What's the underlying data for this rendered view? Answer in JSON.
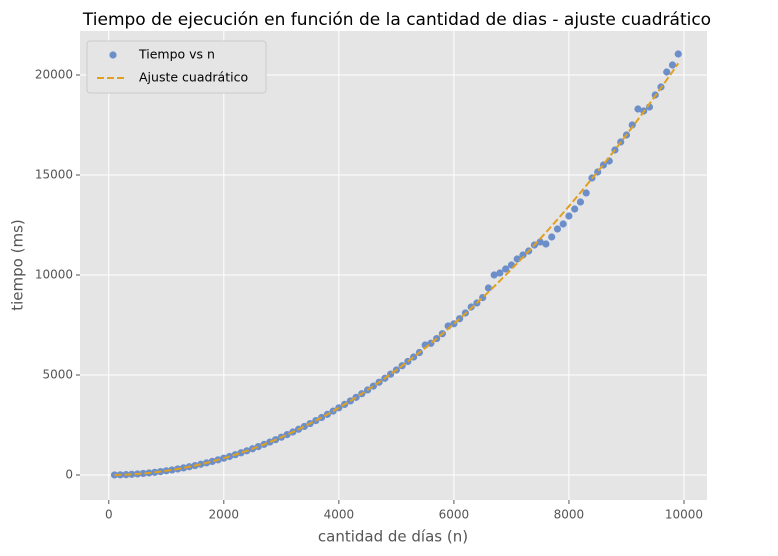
{
  "chart_data": {
    "type": "scatter",
    "title": "Tiempo de ejecución en función de la cantidad de dias - ajuste cuadrático",
    "x_label": "cantidad de días (n)",
    "y_label": "tiempo (ms)",
    "x": [
      100,
      200,
      300,
      400,
      500,
      600,
      700,
      800,
      900,
      1000,
      1100,
      1200,
      1300,
      1400,
      1500,
      1600,
      1700,
      1800,
      1900,
      2000,
      2100,
      2200,
      2300,
      2400,
      2500,
      2600,
      2700,
      2800,
      2900,
      3000,
      3100,
      3200,
      3300,
      3400,
      3500,
      3600,
      3700,
      3800,
      3900,
      4000,
      4100,
      4200,
      4300,
      4400,
      4500,
      4600,
      4700,
      4800,
      4900,
      5000,
      5100,
      5200,
      5300,
      5400,
      5500,
      5600,
      5700,
      5800,
      5900,
      6000,
      6100,
      6200,
      6300,
      6400,
      6500,
      6600,
      6700,
      6800,
      6900,
      7000,
      7100,
      7200,
      7300,
      7400,
      7500,
      7600,
      7700,
      7800,
      7900,
      8000,
      8100,
      8200,
      8300,
      8400,
      8500,
      8600,
      8700,
      8800,
      8900,
      9000,
      9100,
      9200,
      9300,
      9400,
      9500,
      9600,
      9700,
      9800,
      9900
    ],
    "series": [
      {
        "name": "Tiempo vs n",
        "color": "#6d8fc9",
        "kind": "scatter",
        "values": [
          2,
          8,
          19,
          34,
          53,
          76,
          103,
          134,
          170,
          210,
          254,
          302,
          355,
          412,
          473,
          538,
          607,
          680,
          758,
          840,
          926,
          1016,
          1111,
          1210,
          1313,
          1420,
          1531,
          1646,
          1766,
          1890,
          2018,
          2150,
          2287,
          2428,
          2573,
          2722,
          2875,
          3032,
          3194,
          3360,
          3530,
          3704,
          3883,
          4066,
          4253,
          4444,
          4639,
          4838,
          5042,
          5250,
          5462,
          5678,
          5899,
          6124,
          6500,
          6586,
          6823,
          7064,
          7450,
          7560,
          7814,
          8100,
          8400,
          8600,
          8870,
          9350,
          10000,
          10100,
          10300,
          10500,
          10800,
          11000,
          11200,
          11500,
          11650,
          11550,
          11900,
          12300,
          12550,
          12950,
          13300,
          13650,
          14100,
          14850,
          15150,
          15500,
          15700,
          16250,
          16650,
          17000,
          17500,
          18300,
          18200,
          18400,
          19000,
          19400,
          20150,
          20500,
          21050
        ]
      },
      {
        "name": "Ajuste cuadrático",
        "color": "#e0a020",
        "kind": "line",
        "dashed": true,
        "values": [
          2,
          8,
          19,
          34,
          53,
          76,
          103,
          134,
          170,
          210,
          254,
          302,
          355,
          412,
          473,
          538,
          607,
          680,
          758,
          840,
          926,
          1016,
          1111,
          1210,
          1313,
          1420,
          1531,
          1646,
          1766,
          1890,
          2018,
          2150,
          2287,
          2428,
          2573,
          2722,
          2875,
          3032,
          3194,
          3360,
          3530,
          3704,
          3883,
          4066,
          4253,
          4444,
          4639,
          4838,
          5042,
          5250,
          5462,
          5678,
          5899,
          6124,
          6353,
          6586,
          6823,
          7064,
          7310,
          7560,
          7814,
          8072,
          8335,
          8602,
          8873,
          9148,
          9427,
          9710,
          9998,
          10290,
          10586,
          10886,
          11191,
          11500,
          11813,
          12130,
          12451,
          12776,
          13106,
          13440,
          13778,
          14120,
          14467,
          14818,
          15173,
          15532,
          15895,
          16262,
          16634,
          17010,
          17390,
          17774,
          18163,
          18556,
          18953,
          19354,
          19759,
          20168,
          20582
        ]
      }
    ],
    "xlim": [
      -500,
      10400
    ],
    "xticks": [
      0,
      2000,
      4000,
      6000,
      8000,
      10000
    ],
    "ylim": [
      -1250,
      22200
    ],
    "yticks": [
      0,
      5000,
      10000,
      15000,
      20000
    ],
    "grid": true,
    "legend": "upper left"
  }
}
